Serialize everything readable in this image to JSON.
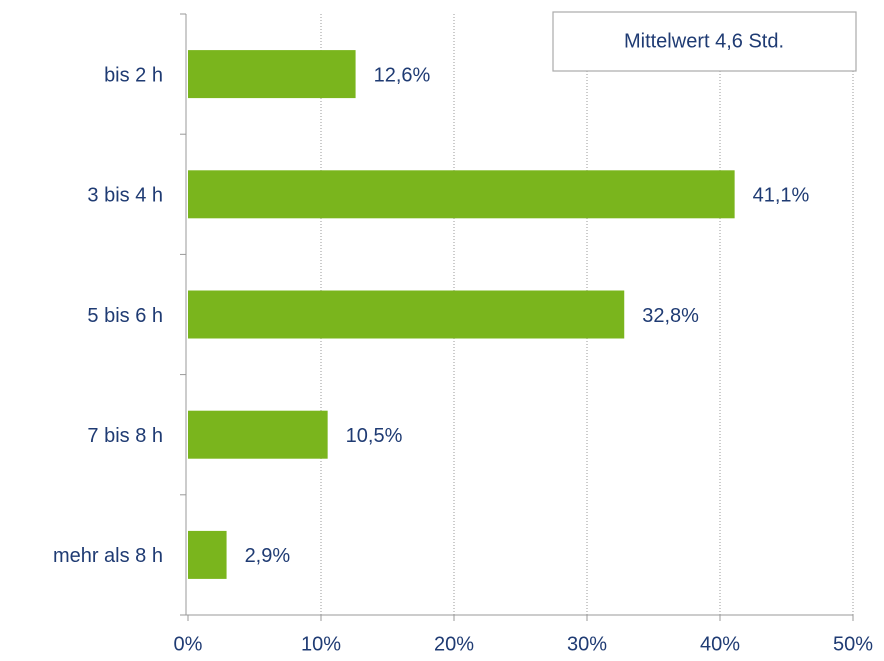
{
  "chart_data": {
    "type": "bar",
    "orientation": "horizontal",
    "annotation": "Mittelwert 4,6 Std.",
    "categories": [
      "bis 2 h",
      "3 bis 4 h",
      "5 bis 6 h",
      "7 bis 8 h",
      "mehr als 8 h"
    ],
    "values": [
      12.6,
      41.1,
      32.8,
      10.5,
      2.9
    ],
    "value_labels": [
      "12,6%",
      "41,1%",
      "32,8%",
      "10,5%",
      "2,9%"
    ],
    "color": "#7ab51d",
    "xlim": [
      0,
      50
    ],
    "xticks": [
      {
        "value": 0,
        "label": "0%"
      },
      {
        "value": 10,
        "label": "10%"
      },
      {
        "value": 20,
        "label": "20%"
      },
      {
        "value": 30,
        "label": "30%"
      },
      {
        "value": 40,
        "label": "40%"
      },
      {
        "value": 50,
        "label": "50%"
      }
    ],
    "grid": true
  }
}
